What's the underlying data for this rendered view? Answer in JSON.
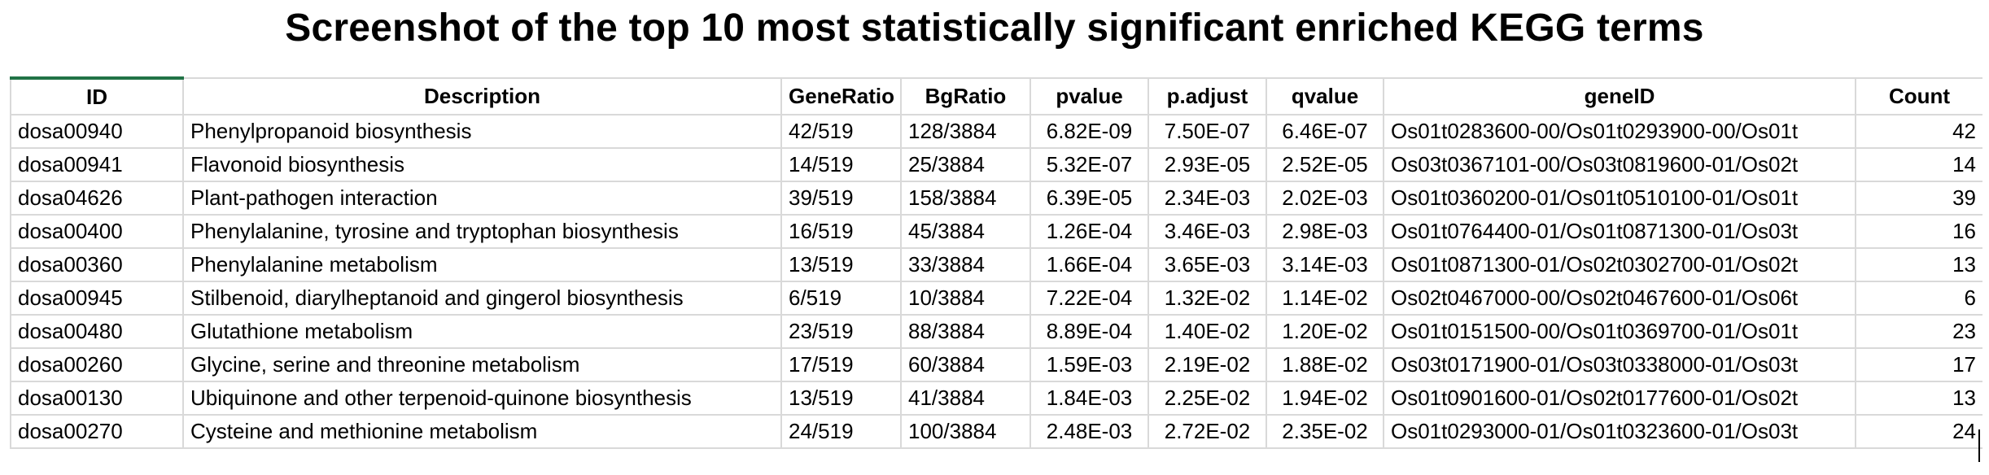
{
  "page": {
    "title": "Screenshot of the top 10 most statistically significant enriched KEGG terms"
  },
  "sheet": {
    "accent_color": "#217346",
    "grid_color": "#d9d9d9",
    "columns": [
      "ID",
      "Description",
      "GeneRatio",
      "BgRatio",
      "pvalue",
      "p.adjust",
      "qvalue",
      "geneID",
      "Count"
    ],
    "rows": [
      {
        "id": "dosa00940",
        "description": "Phenylpropanoid biosynthesis",
        "gene_ratio": "42/519",
        "bg_ratio": "128/3884",
        "pvalue": "6.82E-09",
        "p_adjust": "7.50E-07",
        "qvalue": "6.46E-07",
        "gene_id": "Os01t0283600-00/Os01t0293900-00/Os01t",
        "count": "42"
      },
      {
        "id": "dosa00941",
        "description": "Flavonoid biosynthesis",
        "gene_ratio": "14/519",
        "bg_ratio": "25/3884",
        "pvalue": "5.32E-07",
        "p_adjust": "2.93E-05",
        "qvalue": "2.52E-05",
        "gene_id": "Os03t0367101-00/Os03t0819600-01/Os02t",
        "count": "14"
      },
      {
        "id": "dosa04626",
        "description": "Plant-pathogen interaction",
        "gene_ratio": "39/519",
        "bg_ratio": "158/3884",
        "pvalue": "6.39E-05",
        "p_adjust": "2.34E-03",
        "qvalue": "2.02E-03",
        "gene_id": "Os01t0360200-01/Os01t0510100-01/Os01t",
        "count": "39"
      },
      {
        "id": "dosa00400",
        "description": "Phenylalanine, tyrosine and tryptophan biosynthesis",
        "gene_ratio": "16/519",
        "bg_ratio": "45/3884",
        "pvalue": "1.26E-04",
        "p_adjust": "3.46E-03",
        "qvalue": "2.98E-03",
        "gene_id": "Os01t0764400-01/Os01t0871300-01/Os03t",
        "count": "16"
      },
      {
        "id": "dosa00360",
        "description": "Phenylalanine metabolism",
        "gene_ratio": "13/519",
        "bg_ratio": "33/3884",
        "pvalue": "1.66E-04",
        "p_adjust": "3.65E-03",
        "qvalue": "3.14E-03",
        "gene_id": "Os01t0871300-01/Os02t0302700-01/Os02t",
        "count": "13"
      },
      {
        "id": "dosa00945",
        "description": "Stilbenoid, diarylheptanoid and gingerol biosynthesis",
        "gene_ratio": "6/519",
        "bg_ratio": "10/3884",
        "pvalue": "7.22E-04",
        "p_adjust": "1.32E-02",
        "qvalue": "1.14E-02",
        "gene_id": "Os02t0467000-00/Os02t0467600-01/Os06t",
        "count": "6"
      },
      {
        "id": "dosa00480",
        "description": "Glutathione metabolism",
        "gene_ratio": "23/519",
        "bg_ratio": "88/3884",
        "pvalue": "8.89E-04",
        "p_adjust": "1.40E-02",
        "qvalue": "1.20E-02",
        "gene_id": "Os01t0151500-00/Os01t0369700-01/Os01t",
        "count": "23"
      },
      {
        "id": "dosa00260",
        "description": "Glycine, serine and threonine metabolism",
        "gene_ratio": "17/519",
        "bg_ratio": "60/3884",
        "pvalue": "1.59E-03",
        "p_adjust": "2.19E-02",
        "qvalue": "1.88E-02",
        "gene_id": "Os03t0171900-01/Os03t0338000-01/Os03t",
        "count": "17"
      },
      {
        "id": "dosa00130",
        "description": "Ubiquinone and other terpenoid-quinone biosynthesis",
        "gene_ratio": "13/519",
        "bg_ratio": "41/3884",
        "pvalue": "1.84E-03",
        "p_adjust": "2.25E-02",
        "qvalue": "1.94E-02",
        "gene_id": "Os01t0901600-01/Os02t0177600-01/Os02t",
        "count": "13"
      },
      {
        "id": "dosa00270",
        "description": "Cysteine and methionine metabolism",
        "gene_ratio": "24/519",
        "bg_ratio": "100/3884",
        "pvalue": "2.48E-03",
        "p_adjust": "2.72E-02",
        "qvalue": "2.35E-02",
        "gene_id": "Os01t0293000-01/Os01t0323600-01/Os03t",
        "count": "24"
      }
    ]
  }
}
